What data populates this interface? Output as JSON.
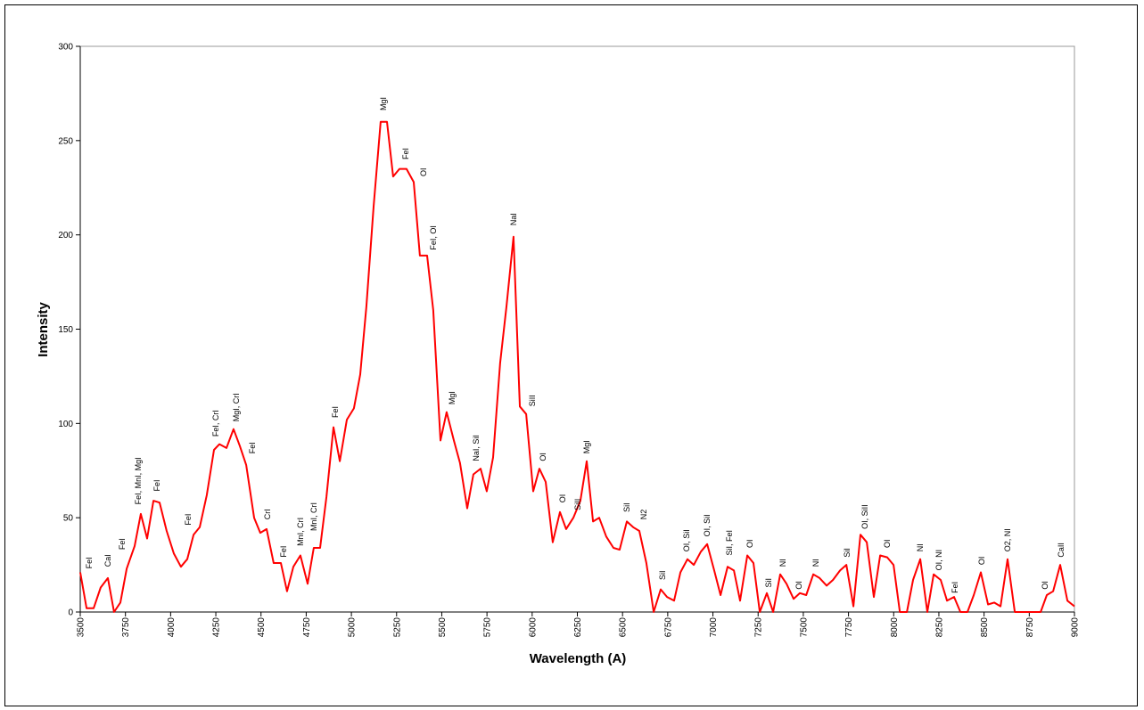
{
  "chart_data": {
    "type": "line",
    "xlabel": "Wavelength (A)",
    "ylabel": "Intensity",
    "x": [
      3500,
      3535,
      3574,
      3613,
      3653,
      3687,
      3722,
      3757,
      3801,
      3835,
      3870,
      3905,
      3939,
      3978,
      4018,
      4057,
      4092,
      4127,
      4161,
      4200,
      4240,
      4270,
      4309,
      4348,
      4383,
      4418,
      4462,
      4496,
      4531,
      4570,
      4610,
      4644,
      4679,
      4718,
      4758,
      4792,
      4827,
      4862,
      4901,
      4936,
      4975,
      5014,
      5049,
      5083,
      5123,
      5162,
      5197,
      5231,
      5266,
      5305,
      5345,
      5379,
      5419,
      5453,
      5493,
      5527,
      5567,
      5601,
      5641,
      5675,
      5715,
      5749,
      5784,
      5823,
      5858,
      5897,
      5932,
      5967,
      6006,
      6040,
      6075,
      6114,
      6154,
      6188,
      6228,
      6267,
      6302,
      6337,
      6371,
      6410,
      6450,
      6484,
      6524,
      6559,
      6593,
      6632,
      6672,
      6711,
      6746,
      6785,
      6820,
      6859,
      6894,
      6933,
      6968,
      7007,
      7042,
      7081,
      7116,
      7150,
      7190,
      7224,
      7259,
      7298,
      7333,
      7372,
      7407,
      7446,
      7481,
      7516,
      7555,
      7590,
      7629,
      7664,
      7703,
      7738,
      7777,
      7816,
      7851,
      7890,
      7925,
      7964,
      7999,
      8034,
      8073,
      8107,
      8147,
      8186,
      8221,
      8260,
      8295,
      8334,
      8369,
      8408,
      8443,
      8482,
      8522,
      8556,
      8591,
      8630,
      8670,
      8704,
      8744,
      8778,
      8813,
      8847,
      8882,
      8921,
      8961,
      9000
    ],
    "series": [
      {
        "color": "#ff0000",
        "values": [
          21,
          2,
          2,
          13,
          18,
          0,
          5,
          23,
          35,
          52,
          39,
          59,
          58,
          43,
          31,
          24,
          28,
          41,
          45,
          62,
          86,
          89,
          87,
          97,
          88,
          78,
          50,
          42,
          44,
          26,
          26,
          11,
          24,
          30,
          15,
          34,
          34,
          61,
          98,
          80,
          102,
          108,
          126,
          162,
          215,
          260,
          260,
          231,
          235,
          235,
          228,
          189,
          189,
          160,
          91,
          106,
          91,
          79,
          55,
          73,
          76,
          64,
          82,
          132,
          162,
          199,
          109,
          105,
          64,
          76,
          69,
          37,
          53,
          44,
          50,
          59,
          80,
          48,
          50,
          40,
          34,
          33,
          48,
          45,
          43,
          26,
          0,
          12,
          8,
          6,
          21,
          28,
          25,
          32,
          36,
          22,
          9,
          24,
          22,
          6,
          30,
          26,
          0,
          10,
          0,
          20,
          15,
          7,
          10,
          9,
          20,
          18,
          14,
          17,
          22,
          25,
          3,
          41,
          37,
          8,
          30,
          29,
          25,
          0,
          0,
          17,
          28,
          0,
          20,
          17,
          6,
          8,
          0,
          0,
          9,
          21,
          4,
          5,
          3,
          28,
          0,
          0,
          0,
          0,
          0,
          9,
          11,
          25,
          6,
          3
        ]
      }
    ],
    "xlim": [
      3500,
      9000
    ],
    "xticks": [
      3500,
      3750,
      4000,
      4250,
      4500,
      4750,
      5000,
      5250,
      5500,
      5750,
      6000,
      6250,
      6500,
      6750,
      7000,
      7250,
      7500,
      7750,
      8000,
      8250,
      8500,
      8750,
      9000
    ],
    "ylim": [
      0,
      300
    ],
    "yticks": [
      0,
      50,
      100,
      150,
      200,
      250,
      300
    ],
    "annotations": [
      {
        "text": "FeI",
        "x": 3549,
        "y": 23
      },
      {
        "text": "CaI",
        "x": 3653,
        "y": 24
      },
      {
        "text": "FeI",
        "x": 3732,
        "y": 33
      },
      {
        "text": "FeI, MnI, MgI",
        "x": 3821,
        "y": 57
      },
      {
        "text": "FeI",
        "x": 3924,
        "y": 64
      },
      {
        "text": "FeI",
        "x": 4097,
        "y": 46
      },
      {
        "text": "FeI, CrI",
        "x": 4250,
        "y": 93
      },
      {
        "text": "MgI, CrI",
        "x": 4363,
        "y": 101
      },
      {
        "text": "FeI",
        "x": 4452,
        "y": 84
      },
      {
        "text": "CrI",
        "x": 4536,
        "y": 49
      },
      {
        "text": "FeI",
        "x": 4625,
        "y": 29
      },
      {
        "text": "MnI, CrI",
        "x": 4718,
        "y": 35
      },
      {
        "text": "MnI, CrI",
        "x": 4792,
        "y": 43
      },
      {
        "text": "FeI",
        "x": 4911,
        "y": 103
      },
      {
        "text": "MgI",
        "x": 5177,
        "y": 266
      },
      {
        "text": "FeI",
        "x": 5300,
        "y": 240
      },
      {
        "text": "OI",
        "x": 5399,
        "y": 231
      },
      {
        "text": "FeI, OI",
        "x": 5453,
        "y": 192
      },
      {
        "text": "MgI",
        "x": 5557,
        "y": 110
      },
      {
        "text": "NaI, SiI",
        "x": 5690,
        "y": 80
      },
      {
        "text": "NaI",
        "x": 5897,
        "y": 205
      },
      {
        "text": "SiII",
        "x": 6001,
        "y": 109
      },
      {
        "text": "OI",
        "x": 6060,
        "y": 80
      },
      {
        "text": "OI",
        "x": 6169,
        "y": 58
      },
      {
        "text": "MgI",
        "x": 6302,
        "y": 84
      },
      {
        "text": "SiII",
        "x": 6253,
        "y": 54
      },
      {
        "text": "SiI",
        "x": 6524,
        "y": 53
      },
      {
        "text": "N2",
        "x": 6618,
        "y": 49
      },
      {
        "text": "SiI",
        "x": 6721,
        "y": 17
      },
      {
        "text": "OI, SiI",
        "x": 6854,
        "y": 32
      },
      {
        "text": "OI, SiI",
        "x": 6968,
        "y": 40
      },
      {
        "text": "SiI, FeI",
        "x": 7091,
        "y": 30
      },
      {
        "text": "OI",
        "x": 7205,
        "y": 34
      },
      {
        "text": "SiI",
        "x": 7308,
        "y": 13
      },
      {
        "text": "NI",
        "x": 7387,
        "y": 24
      },
      {
        "text": "OI",
        "x": 7476,
        "y": 12
      },
      {
        "text": "NI",
        "x": 7570,
        "y": 24
      },
      {
        "text": "SiI",
        "x": 7742,
        "y": 29
      },
      {
        "text": "OI, SiII",
        "x": 7841,
        "y": 44
      },
      {
        "text": "OI",
        "x": 7964,
        "y": 34
      },
      {
        "text": "NI",
        "x": 8147,
        "y": 32
      },
      {
        "text": "OI, NI",
        "x": 8250,
        "y": 22
      },
      {
        "text": "FeI",
        "x": 8339,
        "y": 10
      },
      {
        "text": "OI",
        "x": 8487,
        "y": 25
      },
      {
        "text": "O2, NI",
        "x": 8630,
        "y": 32
      },
      {
        "text": "OI",
        "x": 8837,
        "y": 12
      },
      {
        "text": "CaII",
        "x": 8926,
        "y": 29
      }
    ]
  }
}
